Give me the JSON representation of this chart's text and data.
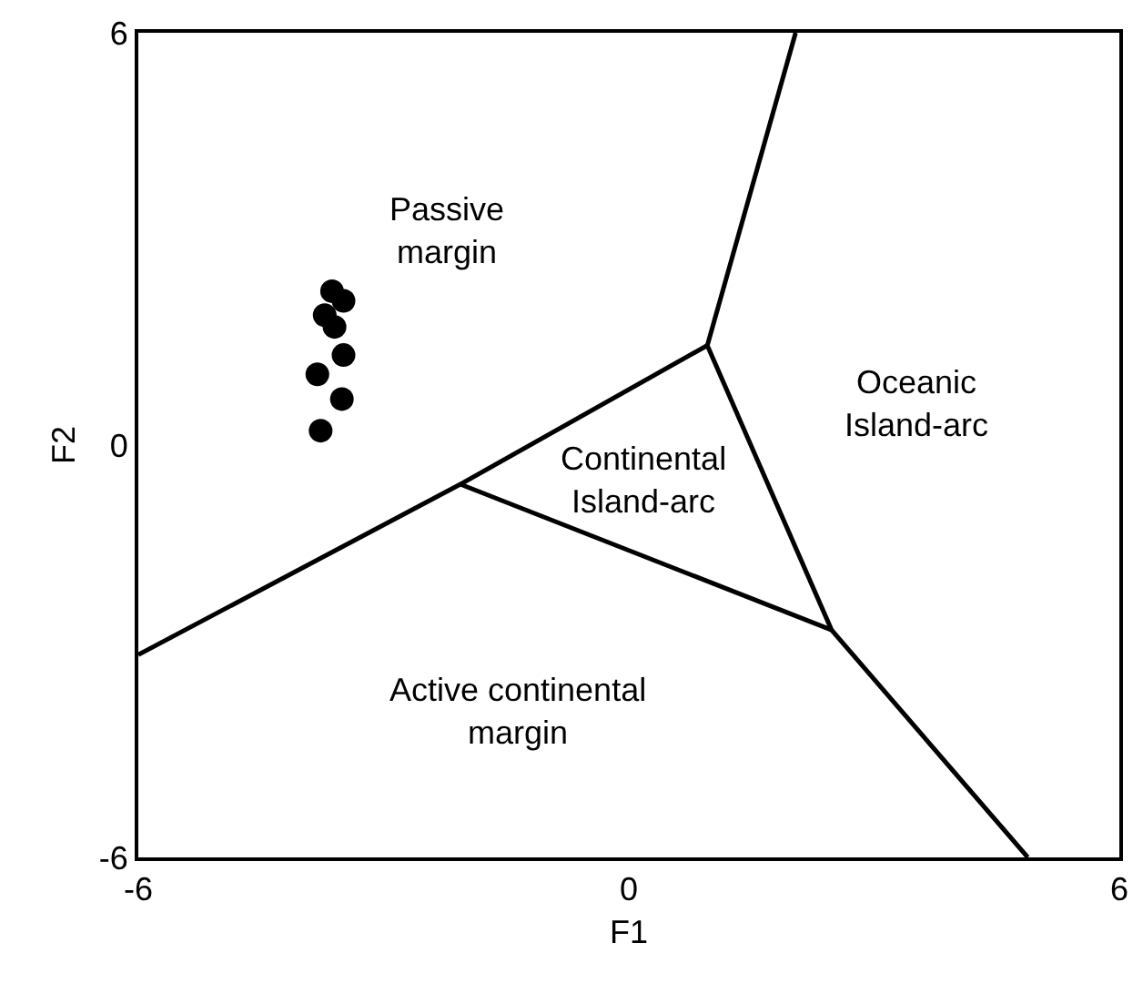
{
  "chart_data": {
    "type": "scatter",
    "xlabel": "F1",
    "ylabel": "F2",
    "xlim": [
      -6,
      6
    ],
    "ylim": [
      -6,
      6
    ],
    "xticks": [
      -6,
      0,
      6
    ],
    "yticks": [
      -6,
      0,
      6
    ],
    "grid": false,
    "marker": "circle",
    "series": [
      {
        "color": "#000000",
        "x": [
          -3.63,
          -3.49,
          -3.72,
          -3.6,
          -3.49,
          -3.81,
          -3.51,
          -3.77
        ],
        "values": [
          2.24,
          2.1,
          1.89,
          1.72,
          1.31,
          1.03,
          0.67,
          0.21
        ]
      },
      {
        "type": "line",
        "color": "#000000",
        "marker": "none",
        "x": [
          -6,
          -2.06,
          0.96
        ],
        "values": [
          -3.05,
          -0.57,
          1.45
        ]
      },
      {
        "type": "line",
        "color": "#000000",
        "marker": "none",
        "x": [
          2.04,
          0.96,
          2.48,
          4.88
        ],
        "values": [
          6,
          1.45,
          -2.69,
          -6
        ]
      },
      {
        "type": "line",
        "color": "#000000",
        "marker": "none",
        "x": [
          -2.06,
          2.48
        ],
        "values": [
          -0.57,
          -2.69
        ]
      }
    ],
    "annotations": [
      "Passive\nmargin",
      "Oceanic\nIsland-arc",
      "Continental\nIsland-arc",
      "Active continental\nmargin"
    ]
  }
}
